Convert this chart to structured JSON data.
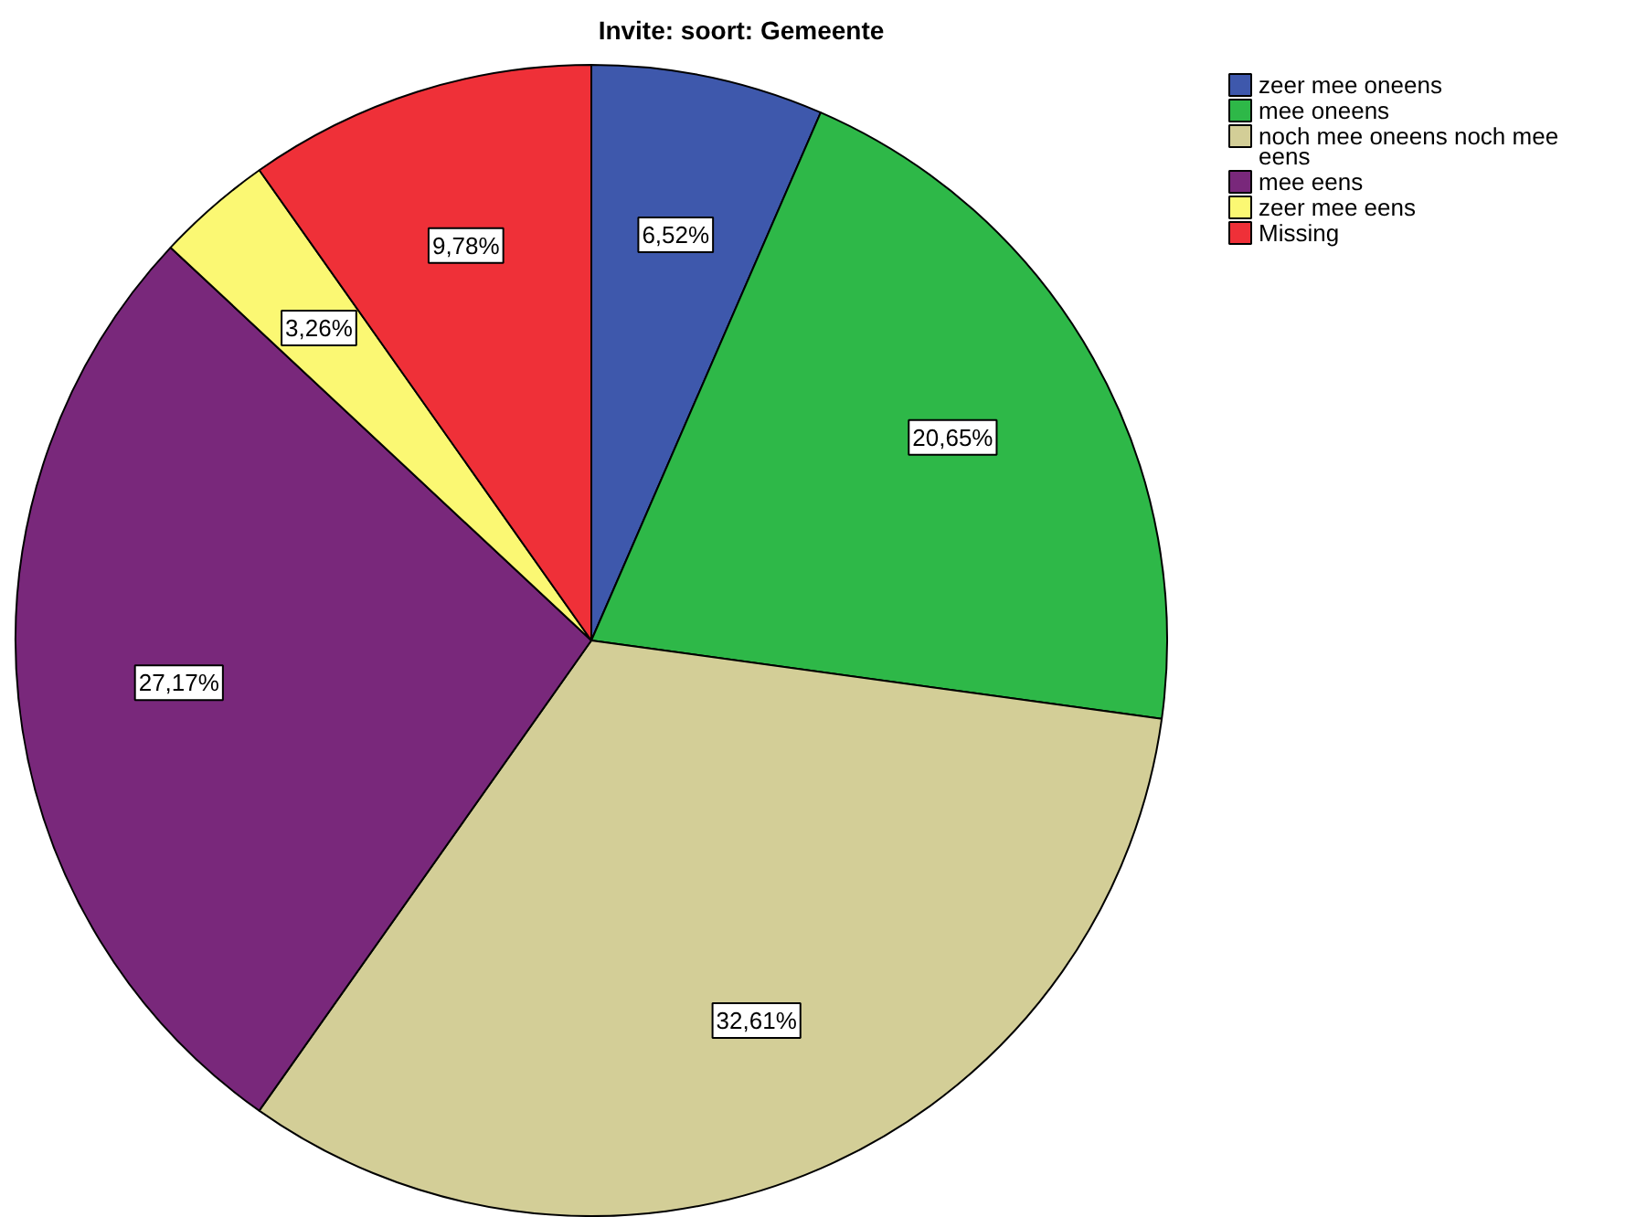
{
  "chart_data": {
    "type": "pie",
    "title": "Invite: soort: Gemeente",
    "categories": [
      "zeer mee oneens",
      "mee oneens",
      "noch mee oneens noch mee eens",
      "mee eens",
      "zeer mee eens",
      "Missing"
    ],
    "values": [
      6.52,
      20.65,
      32.61,
      27.17,
      3.26,
      9.78
    ],
    "colors": [
      "#3e58ac",
      "#2eb848",
      "#d3ce97",
      "#79287b",
      "#fbf873",
      "#ef3038"
    ],
    "value_labels": [
      "6,52%",
      "20,65%",
      "32,61%",
      "27,17%",
      "3,26%",
      "9,78%"
    ],
    "legend": "top right"
  }
}
